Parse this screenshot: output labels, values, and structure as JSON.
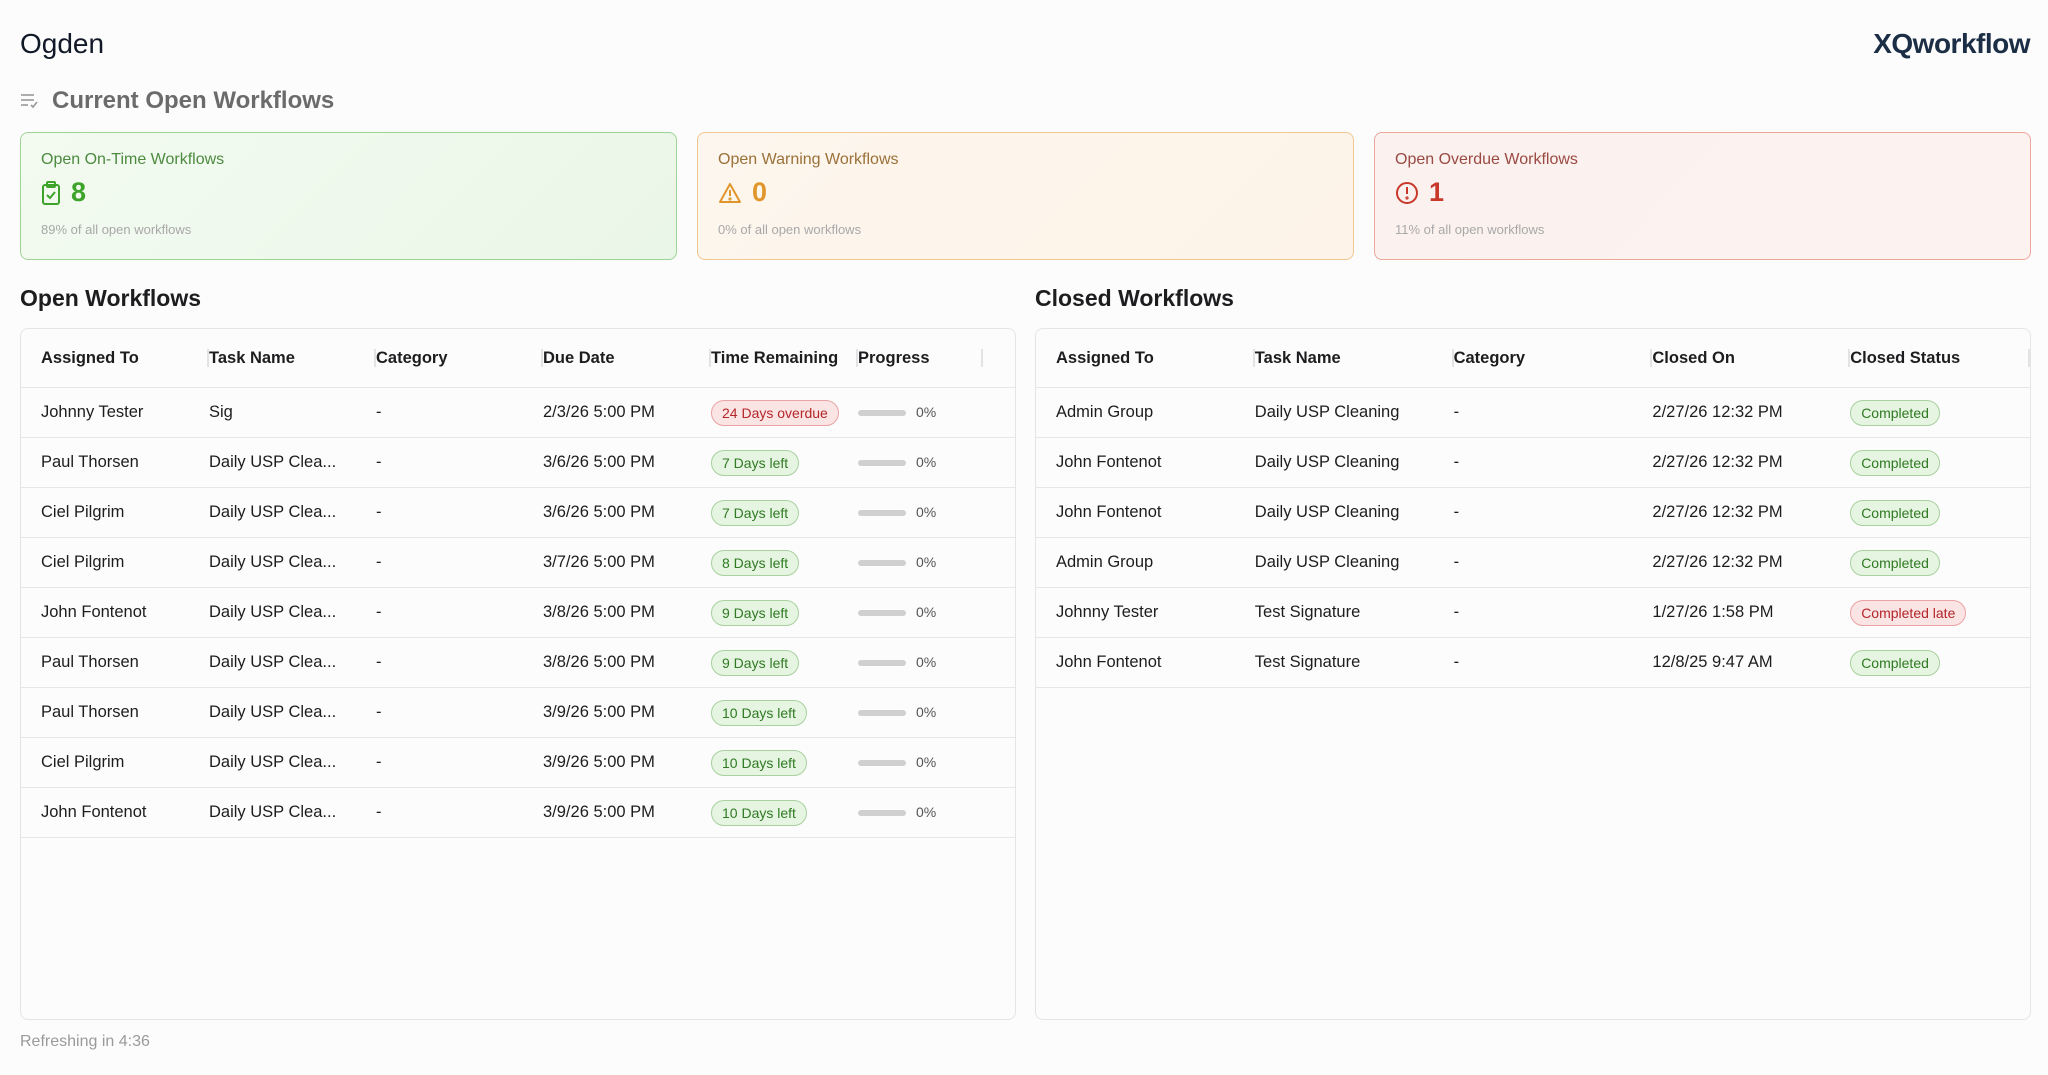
{
  "site": "Ogden",
  "logo": "XQworkflow",
  "section_title": "Current Open Workflows",
  "cards": [
    {
      "label": "Open On-Time Workflows",
      "value": "8",
      "sub": "89% of all open workflows",
      "icon": "clipboard-check-icon"
    },
    {
      "label": "Open Warning Workflows",
      "value": "0",
      "sub": "0% of all open workflows",
      "icon": "warning-triangle-icon"
    },
    {
      "label": "Open Overdue Workflows",
      "value": "1",
      "sub": "11% of all open workflows",
      "icon": "alert-circle-icon"
    }
  ],
  "open": {
    "title": "Open Workflows",
    "headers": [
      "Assigned To",
      "Task Name",
      "Category",
      "Due Date",
      "Time Remaining",
      "Progress"
    ],
    "rows": [
      [
        "Johnny Tester",
        "Sig",
        "-",
        "2/3/26 5:00 PM",
        "24 Days overdue",
        "0%",
        "r"
      ],
      [
        "Paul Thorsen",
        "Daily USP Clea...",
        "-",
        "3/6/26 5:00 PM",
        "7 Days left",
        "0%",
        "g"
      ],
      [
        "Ciel Pilgrim",
        "Daily USP Clea...",
        "-",
        "3/6/26 5:00 PM",
        "7 Days left",
        "0%",
        "g"
      ],
      [
        "Ciel Pilgrim",
        "Daily USP Clea...",
        "-",
        "3/7/26 5:00 PM",
        "8 Days left",
        "0%",
        "g"
      ],
      [
        "John Fontenot",
        "Daily USP Clea...",
        "-",
        "3/8/26 5:00 PM",
        "9 Days left",
        "0%",
        "g"
      ],
      [
        "Paul Thorsen",
        "Daily USP Clea...",
        "-",
        "3/8/26 5:00 PM",
        "9 Days left",
        "0%",
        "g"
      ],
      [
        "Paul Thorsen",
        "Daily USP Clea...",
        "-",
        "3/9/26 5:00 PM",
        "10 Days left",
        "0%",
        "g"
      ],
      [
        "Ciel Pilgrim",
        "Daily USP Clea...",
        "-",
        "3/9/26 5:00 PM",
        "10 Days left",
        "0%",
        "g"
      ],
      [
        "John Fontenot",
        "Daily USP Clea...",
        "-",
        "3/9/26 5:00 PM",
        "10 Days left",
        "0%",
        "g"
      ]
    ]
  },
  "closed": {
    "title": "Closed Workflows",
    "headers": [
      "Assigned To",
      "Task Name",
      "Category",
      "Closed On",
      "Closed Status"
    ],
    "rows": [
      [
        "Admin Group",
        "Daily USP Cleaning",
        "-",
        "2/27/26 12:32 PM",
        "Completed",
        "g"
      ],
      [
        "John Fontenot",
        "Daily USP Cleaning",
        "-",
        "2/27/26 12:32 PM",
        "Completed",
        "g"
      ],
      [
        "John Fontenot",
        "Daily USP Cleaning",
        "-",
        "2/27/26 12:32 PM",
        "Completed",
        "g"
      ],
      [
        "Admin Group",
        "Daily USP Cleaning",
        "-",
        "2/27/26 12:32 PM",
        "Completed",
        "g"
      ],
      [
        "Johnny Tester",
        "Test Signature",
        "-",
        "1/27/26 1:58 PM",
        "Completed late",
        "r"
      ],
      [
        "John Fontenot",
        "Test Signature",
        "-",
        "12/8/25 9:47 AM",
        "Completed",
        "g"
      ]
    ]
  },
  "footer": "Refreshing in 4:36"
}
